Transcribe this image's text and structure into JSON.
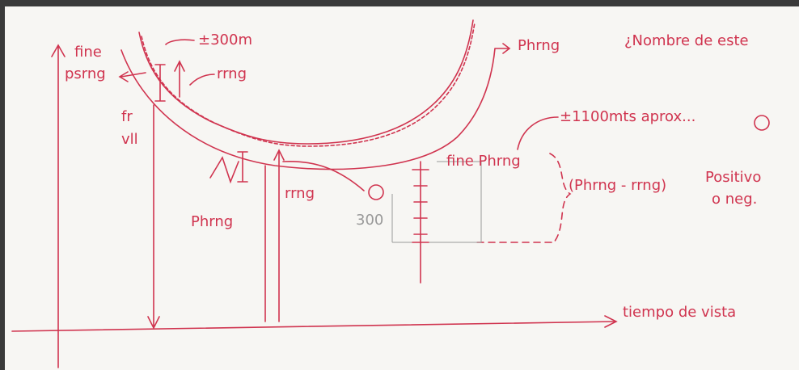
{
  "labels": {
    "fine": "fine",
    "psrng": "psrng",
    "plus_minus_300": "±300m",
    "rrng_top": "rrng",
    "phrng_top": "Phrng",
    "question": "¿Nombre de este",
    "plus_minus_1100": "±1100mts aprox...",
    "fr": "fr",
    "vll": "vll",
    "fine_phrng": "fine Phrng",
    "difference": "(Phrng - rrng)",
    "positivo": "Positivo",
    "o_neg": "o neg.",
    "phrng_left": "Phrng",
    "rrng_mid": "rrng",
    "tiempo": "tiempo de vista",
    "three_hundred": "300"
  }
}
